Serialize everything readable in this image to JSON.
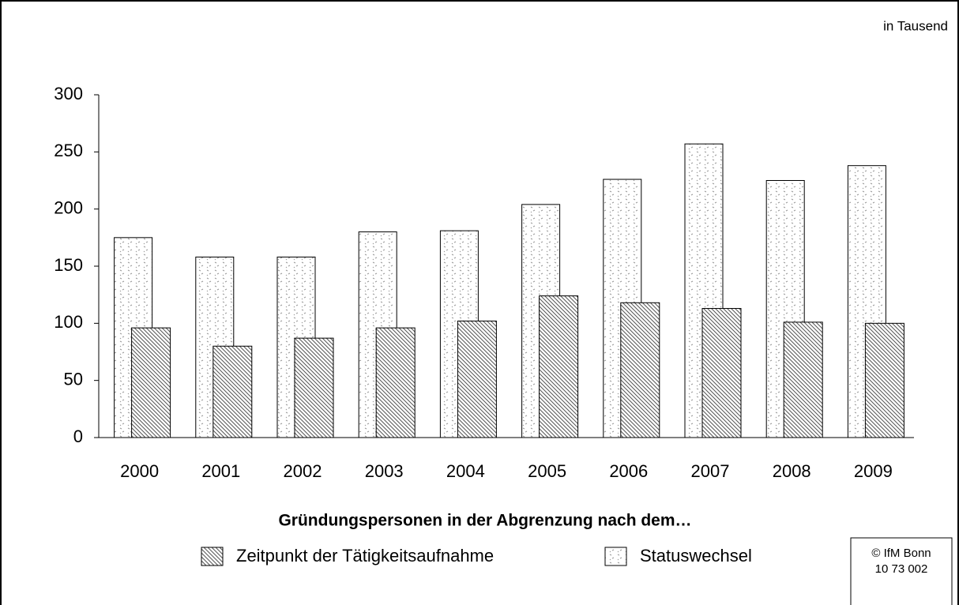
{
  "chart_data": {
    "type": "bar",
    "unit_note": "in Tausend",
    "x_label": "Gründungspersonen in der Abgrenzung nach dem…",
    "source": [
      "© IfM Bonn",
      "10 73 002"
    ],
    "categories": [
      "2000",
      "2001",
      "2002",
      "2003",
      "2004",
      "2005",
      "2006",
      "2007",
      "2008",
      "2009"
    ],
    "series": [
      {
        "name": "Zeitpunkt der Tätigkeitsaufnahme",
        "color": "#000000",
        "pattern": "hatch",
        "values": [
          96,
          80,
          87,
          96,
          102,
          124,
          118,
          113,
          101,
          100
        ]
      },
      {
        "name": "Statuswechsel",
        "color": "#000000",
        "pattern": "dots",
        "values": [
          175,
          158,
          158,
          180,
          181,
          204,
          226,
          257,
          225,
          238
        ]
      }
    ],
    "ylim": [
      0,
      300
    ],
    "yticks": [
      0,
      50,
      100,
      150,
      200,
      250,
      300
    ],
    "grid": false
  }
}
